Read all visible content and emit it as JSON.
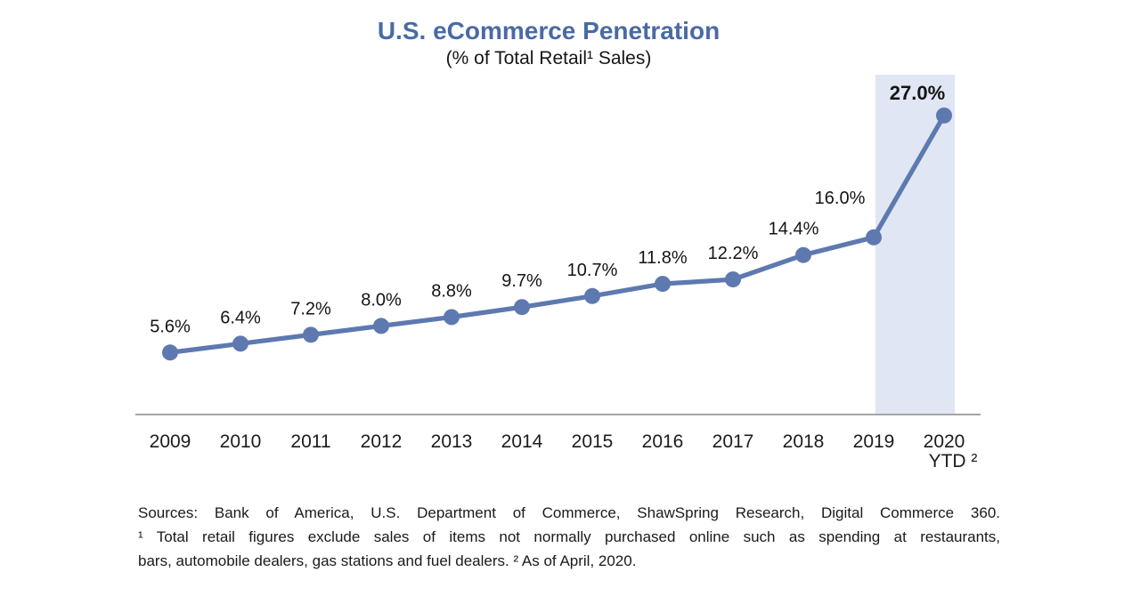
{
  "chart_data": {
    "type": "line",
    "title": "U.S. eCommerce Penetration",
    "subtitle": "(% of Total Retail¹ Sales)",
    "categories": [
      "2009",
      "2010",
      "2011",
      "2012",
      "2013",
      "2014",
      "2015",
      "2016",
      "2017",
      "2018",
      "2019",
      "2020"
    ],
    "last_category_note": "YTD ²",
    "values": [
      5.6,
      6.4,
      7.2,
      8.0,
      8.8,
      9.7,
      10.7,
      11.8,
      12.2,
      14.4,
      16.0,
      27.0
    ],
    "labels": [
      "5.6%",
      "6.4%",
      "7.2%",
      "8.0%",
      "8.8%",
      "9.7%",
      "10.7%",
      "11.8%",
      "12.2%",
      "14.4%",
      "16.0%",
      "27.0%"
    ],
    "emphasized_label_index": 11,
    "label_offsets": {
      "default": [
        0,
        -23
      ],
      "9": [
        -11,
        -23
      ],
      "10": [
        -38,
        -38
      ],
      "11": [
        -30,
        -18
      ]
    },
    "xlabel": "",
    "ylabel": "",
    "ylim": [
      0,
      30
    ],
    "grid": false,
    "legend": false,
    "highlight_band": {
      "category": "2020",
      "color": "#e0e6f3"
    },
    "colors": {
      "line": "#5e79b0",
      "marker": "#5e79b0",
      "title": "#4a6aa5",
      "axis_line": "#a6a6a6",
      "label_text": "#141414",
      "highlight_band": "#e0e6f3"
    }
  },
  "footnotes": {
    "lines": [
      "Sources: Bank of America, U.S. Department of Commerce, ShawSpring Research, Digital Commerce 360.",
      "¹ Total retail figures exclude sales of items not normally purchased online such as spending at restaurants,",
      "bars, automobile dealers, gas stations and fuel dealers. ² As of April, 2020."
    ]
  }
}
